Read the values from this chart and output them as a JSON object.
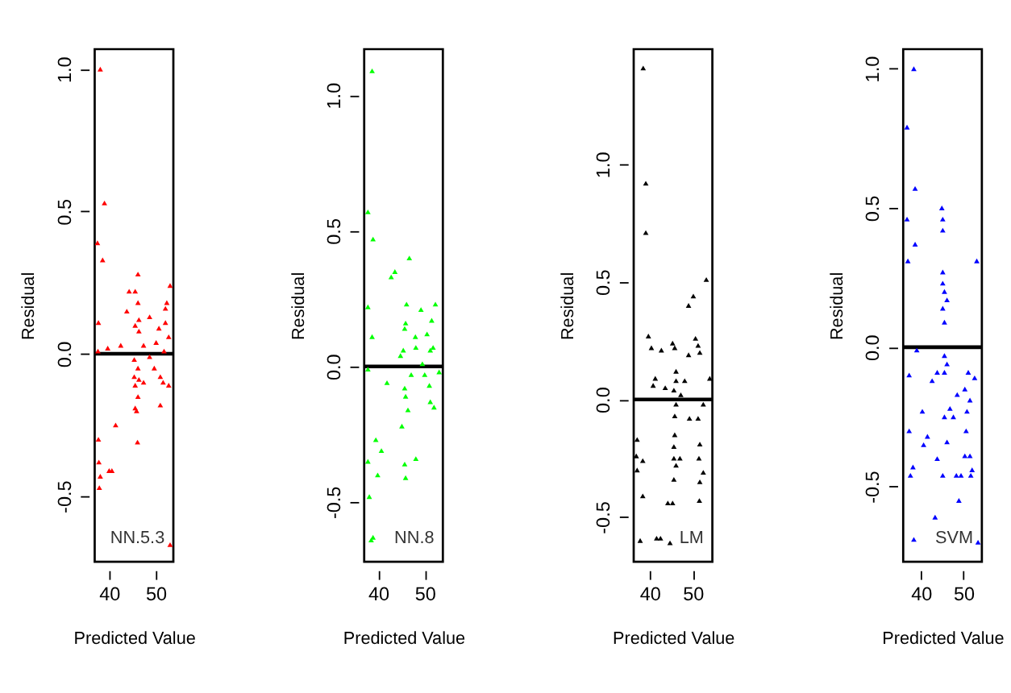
{
  "chart_data": [
    {
      "type": "scatter",
      "xlabel": "Predicted Value",
      "ylabel": "Residual",
      "annotations": [
        "NN.5.3"
      ],
      "marker": "triangle",
      "grid": false,
      "xlim": [
        36.9,
        53.8
      ],
      "ylim": [
        -0.73,
        1.07
      ],
      "xticks": [
        40,
        50
      ],
      "yticks": [
        {
          "value": -0.5,
          "label": "-0.5"
        },
        {
          "value": 0,
          "label": "0.0"
        },
        {
          "value": 0.5,
          "label": "0.5"
        },
        {
          "value": 1.0,
          "label": "1.0"
        }
      ],
      "ref_lines": [
        {
          "axis": "y",
          "value": 0,
          "color": "#000000"
        }
      ],
      "series": [
        {
          "color": "#ff0000",
          "x": [
            38.1,
            39.0,
            37.5,
            38.6,
            37.7,
            37.6,
            39.7,
            42.5,
            43.8,
            44.3,
            45.6,
            46.2,
            46.2,
            45.6,
            46.4,
            46.4,
            48.7,
            47.4,
            50.1,
            50.7,
            52.1,
            52.4,
            53.1,
            52.1,
            52.8,
            51.8,
            45.4,
            46.2,
            45.4,
            46.4,
            45.6,
            46.2,
            47.4,
            48.7,
            49.7,
            51.0,
            51.6,
            52.8,
            51.0,
            45.6,
            45.9,
            41.4,
            46.1,
            37.7,
            37.8,
            38.1,
            40.0,
            40.6,
            37.9,
            53.1
          ],
          "values": [
            1.0,
            0.53,
            0.39,
            0.33,
            0.11,
            0.01,
            0.02,
            0.03,
            0.15,
            0.22,
            0.22,
            0.28,
            0.18,
            0.1,
            0.12,
            0.08,
            0.13,
            0.03,
            0.04,
            0.09,
            0.16,
            0.18,
            0.24,
            0.11,
            0.06,
            0.01,
            -0.02,
            -0.05,
            -0.08,
            -0.09,
            -0.11,
            -0.15,
            -0.1,
            -0.01,
            -0.05,
            -0.08,
            -0.1,
            -0.11,
            -0.18,
            -0.19,
            -0.2,
            -0.25,
            -0.31,
            -0.3,
            -0.38,
            -0.43,
            -0.41,
            -0.41,
            -0.47,
            -0.67
          ]
        }
      ]
    },
    {
      "type": "scatter",
      "xlabel": "Predicted Value",
      "ylabel": "Residual",
      "annotations": [
        "NN.8"
      ],
      "marker": "triangle",
      "grid": false,
      "xlim": [
        37.0,
        53.9
      ],
      "ylim": [
        -0.72,
        1.17
      ],
      "xticks": [
        40,
        50
      ],
      "yticks": [
        {
          "value": -0.5,
          "label": "-0.5"
        },
        {
          "value": 0,
          "label": "0.0"
        },
        {
          "value": 0.5,
          "label": "0.5"
        },
        {
          "value": 1.0,
          "label": "1.0"
        }
      ],
      "ref_lines": [
        {
          "axis": "y",
          "value": 0,
          "color": "#000000"
        }
      ],
      "series": [
        {
          "color": "#00ff00",
          "x": [
            38.7,
            37.8,
            38.9,
            42.8,
            43.6,
            46.7,
            37.8,
            38.7,
            46.1,
            45.9,
            45.7,
            48.0,
            49.2,
            51.5,
            52.3,
            50.5,
            51.2,
            51.8,
            45.4,
            44.8,
            48.1,
            49.5,
            37.8,
            41.9,
            45.7,
            45.9,
            47.1,
            50.0,
            51.0,
            53.1,
            51.2,
            52.0,
            46.4,
            45.1,
            39.5,
            40.7,
            37.8,
            45.7,
            48.1,
            39.9,
            45.9,
            38.1,
            38.5,
            38.9
          ],
          "values": [
            1.09,
            0.57,
            0.47,
            0.33,
            0.35,
            0.4,
            0.22,
            0.11,
            0.23,
            0.16,
            0.14,
            0.11,
            0.21,
            0.17,
            0.23,
            0.12,
            0.06,
            0.07,
            0.06,
            0.04,
            0.07,
            0.01,
            -0.01,
            -0.06,
            -0.08,
            -0.11,
            -0.03,
            -0.03,
            -0.07,
            -0.02,
            -0.13,
            -0.15,
            -0.16,
            -0.22,
            -0.27,
            -0.31,
            -0.35,
            -0.36,
            -0.34,
            -0.4,
            -0.41,
            -0.48,
            -0.64,
            -0.63
          ]
        }
      ]
    },
    {
      "type": "scatter",
      "xlabel": "Predicted Value",
      "ylabel": "Residual",
      "annotations": [
        "LM"
      ],
      "marker": "triangle",
      "grid": false,
      "xlim": [
        36.3,
        54.5
      ],
      "ylim": [
        -0.69,
        1.49
      ],
      "xticks": [
        40,
        50
      ],
      "yticks": [
        {
          "value": -0.5,
          "label": "-0.5"
        },
        {
          "value": 0,
          "label": "0.0"
        },
        {
          "value": 0.5,
          "label": "0.5"
        },
        {
          "value": 1.0,
          "label": "1.0"
        }
      ],
      "ref_lines": [
        {
          "axis": "y",
          "value": 0,
          "color": "#000000"
        }
      ],
      "series": [
        {
          "color": "#000000",
          "x": [
            38.5,
            39.1,
            39.1,
            53.1,
            50.1,
            49.0,
            39.7,
            40.4,
            42.7,
            45.3,
            45.8,
            49.0,
            50.6,
            51.2,
            51.6,
            53.9,
            41.3,
            40.8,
            43.6,
            45.6,
            46.1,
            46.1,
            48.1,
            47.2,
            46.1,
            45.8,
            49.2,
            51.2,
            52.4,
            45.8,
            45.6,
            51.6,
            51.4,
            45.6,
            47.0,
            46.1,
            37.1,
            36.9,
            38.4,
            37.1,
            52.4,
            51.6,
            45.6,
            38.4,
            44.2,
            45.3,
            51.5,
            37.8,
            41.6,
            42.5,
            44.7
          ],
          "values": [
            1.41,
            0.92,
            0.71,
            0.51,
            0.44,
            0.4,
            0.27,
            0.22,
            0.21,
            0.24,
            0.22,
            0.19,
            0.26,
            0.23,
            0.2,
            0.09,
            0.09,
            0.06,
            0.05,
            0.04,
            0.12,
            0.08,
            0.08,
            0.02,
            -0.02,
            -0.07,
            -0.08,
            -0.08,
            -0.02,
            -0.15,
            -0.2,
            -0.19,
            -0.25,
            -0.25,
            -0.25,
            -0.28,
            -0.17,
            -0.24,
            -0.26,
            -0.3,
            -0.31,
            -0.35,
            -0.34,
            -0.41,
            -0.44,
            -0.44,
            -0.43,
            -0.6,
            -0.59,
            -0.59,
            -0.61
          ]
        }
      ]
    },
    {
      "type": "scatter",
      "xlabel": "Predicted Value",
      "ylabel": "Residual",
      "annotations": [
        "SVM"
      ],
      "marker": "triangle",
      "grid": false,
      "xlim": [
        35.8,
        54.3
      ],
      "ylim": [
        -0.77,
        1.07
      ],
      "xticks": [
        40,
        50
      ],
      "yticks": [
        {
          "value": -0.5,
          "label": "-0.5"
        },
        {
          "value": 0,
          "label": "0.0"
        },
        {
          "value": 0.5,
          "label": "0.5"
        },
        {
          "value": 1.0,
          "label": "1.0"
        }
      ],
      "ref_lines": [
        {
          "axis": "y",
          "value": 0,
          "color": "#000000"
        }
      ],
      "series": [
        {
          "color": "#0000ff",
          "x": [
            38.3,
            36.7,
            38.6,
            36.7,
            38.6,
            36.9,
            44.9,
            45.1,
            45.1,
            45.1,
            45.1,
            45.5,
            46.1,
            45.1,
            45.5,
            53.1,
            39.0,
            45.5,
            46.1,
            37.2,
            42.6,
            43.8,
            45.5,
            51.1,
            52.6,
            50.3,
            51.5,
            48.5,
            46.8,
            47.6,
            45.5,
            40.3,
            37.2,
            41.5,
            40.6,
            46.1,
            50.6,
            50.8,
            50.3,
            51.5,
            43.8,
            52.0,
            38.1,
            37.5,
            45.1,
            48.3,
            49.4,
            51.7,
            48.9,
            43.3,
            38.3,
            53.4
          ],
          "values": [
            1.0,
            0.79,
            0.57,
            0.46,
            0.37,
            0.31,
            0.5,
            0.46,
            0.42,
            0.27,
            0.23,
            0.2,
            0.17,
            0.14,
            0.09,
            0.31,
            -0.01,
            -0.03,
            -0.06,
            -0.1,
            -0.12,
            -0.09,
            -0.09,
            -0.09,
            -0.11,
            -0.15,
            -0.19,
            -0.17,
            -0.22,
            -0.25,
            -0.25,
            -0.23,
            -0.3,
            -0.32,
            -0.35,
            -0.34,
            -0.3,
            -0.23,
            -0.39,
            -0.39,
            -0.4,
            -0.44,
            -0.43,
            -0.46,
            -0.46,
            -0.46,
            -0.46,
            -0.46,
            -0.55,
            -0.61,
            -0.69,
            -0.7
          ]
        }
      ]
    }
  ]
}
